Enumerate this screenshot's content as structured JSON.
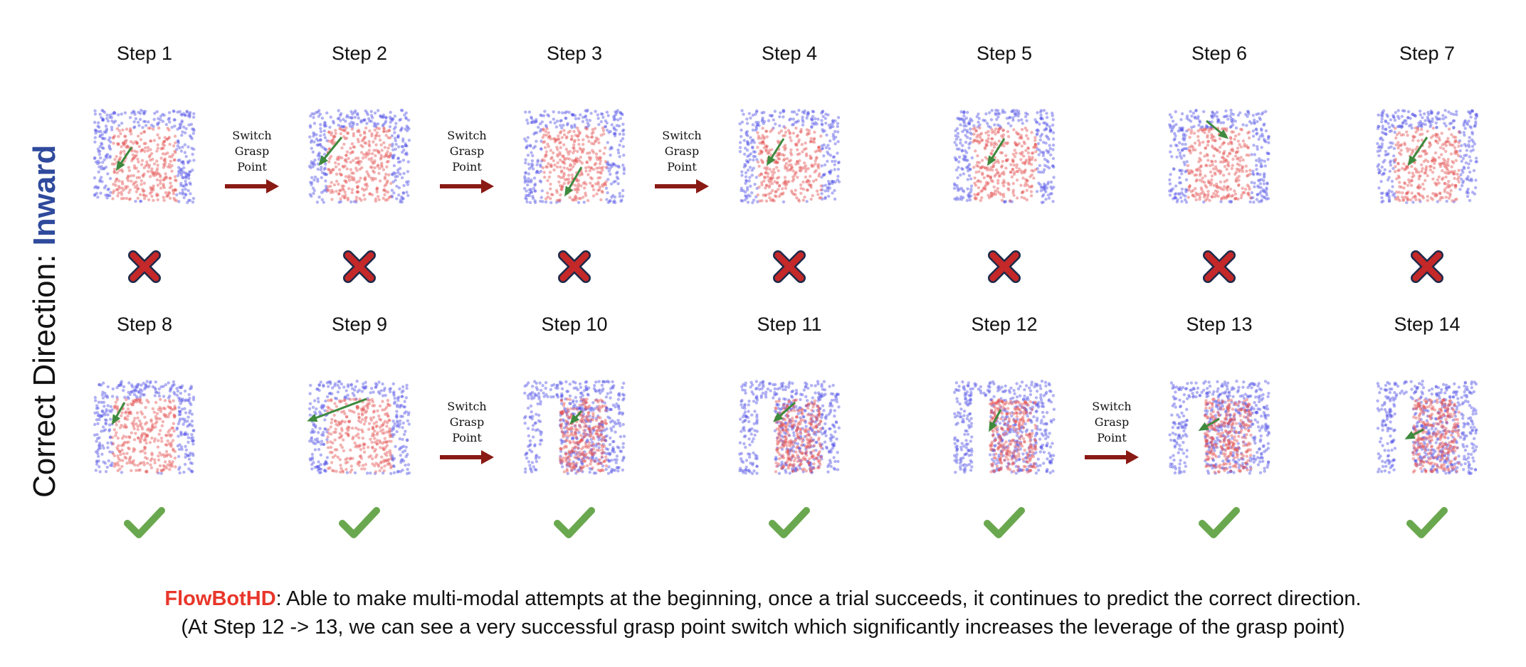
{
  "side_title": {
    "prefix": "Correct Direction: ",
    "highlight": "Inward",
    "highlight_color": "#2f4a9c"
  },
  "colors": {
    "pos": "#5454e6",
    "neg": "#e45656",
    "arrow": "#3e8a3e",
    "switch_arrow": "#8a1a14",
    "cross": "#c42828",
    "check": "#6aa84f",
    "brand": "#e8362a"
  },
  "switch_text": [
    "Switch",
    "Grasp",
    "Point"
  ],
  "steps": [
    {
      "label": "Step 1",
      "result": "fail",
      "open": false
    },
    {
      "label": "Step 2",
      "result": "fail",
      "open": false
    },
    {
      "label": "Step 3",
      "result": "fail",
      "open": false
    },
    {
      "label": "Step 4",
      "result": "fail",
      "open": false
    },
    {
      "label": "Step 5",
      "result": "fail",
      "open": false
    },
    {
      "label": "Step 6",
      "result": "fail",
      "open": false
    },
    {
      "label": "Step 7",
      "result": "fail",
      "open": false
    },
    {
      "label": "Step 8",
      "result": "success",
      "open": false
    },
    {
      "label": "Step 9",
      "result": "success",
      "open": false
    },
    {
      "label": "Step 10",
      "result": "success",
      "open": true
    },
    {
      "label": "Step 11",
      "result": "success",
      "open": true
    },
    {
      "label": "Step 12",
      "result": "success",
      "open": true
    },
    {
      "label": "Step 13",
      "result": "success",
      "open": true
    },
    {
      "label": "Step 14",
      "result": "success",
      "open": true
    }
  ],
  "switch_after_steps": [
    1,
    2,
    3,
    9,
    12
  ],
  "caption": {
    "brand": "FlowBotHD",
    "line1": ": Able to make multi-modal attempts at the beginning, once a trial succeeds, it continues to predict the correct direction.",
    "line2": "(At Step 12 -> 13, we can see a very successful grasp point switch which significantly increases the leverage of the grasp point)"
  }
}
